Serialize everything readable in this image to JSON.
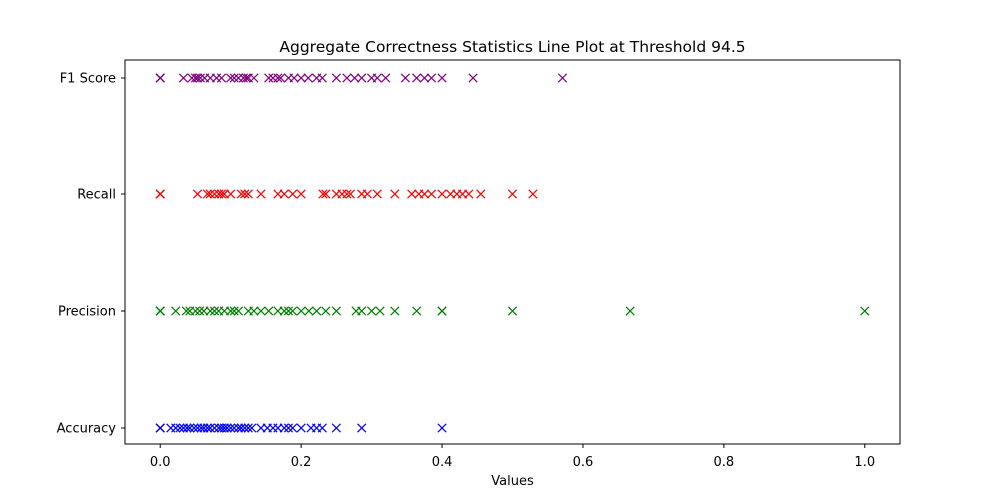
{
  "chart_data": {
    "type": "scatter",
    "title": "Aggregate Correctness Statistics Line Plot at Threshold 94.5",
    "xlabel": "Values",
    "ylabel": "",
    "xlim": [
      -0.05,
      1.05
    ],
    "x_ticks": [
      0.0,
      0.2,
      0.4,
      0.6,
      0.8,
      1.0
    ],
    "x_tick_labels": [
      "0.0",
      "0.2",
      "0.4",
      "0.6",
      "0.8",
      "1.0"
    ],
    "categories": [
      "Accuracy",
      "Precision",
      "Recall",
      "F1 Score"
    ],
    "marker": "x",
    "grid": false,
    "series": [
      {
        "category": "Accuracy",
        "color": "#0000ff",
        "values": [
          0.0,
          0.0,
          0.0,
          0.015,
          0.022,
          0.028,
          0.033,
          0.038,
          0.042,
          0.048,
          0.053,
          0.058,
          0.062,
          0.067,
          0.071,
          0.077,
          0.083,
          0.087,
          0.091,
          0.095,
          0.1,
          0.105,
          0.111,
          0.115,
          0.12,
          0.125,
          0.13,
          0.143,
          0.152,
          0.16,
          0.167,
          0.176,
          0.182,
          0.188,
          0.2,
          0.214,
          0.222,
          0.23,
          0.25,
          0.286,
          0.4
        ]
      },
      {
        "category": "Precision",
        "color": "#008000",
        "values": [
          0.0,
          0.0,
          0.0,
          0.022,
          0.037,
          0.042,
          0.05,
          0.056,
          0.062,
          0.071,
          0.077,
          0.083,
          0.091,
          0.1,
          0.105,
          0.111,
          0.125,
          0.133,
          0.143,
          0.154,
          0.167,
          0.176,
          0.182,
          0.188,
          0.2,
          0.211,
          0.222,
          0.235,
          0.25,
          0.278,
          0.286,
          0.3,
          0.312,
          0.333,
          0.364,
          0.4,
          0.4,
          0.5,
          0.667,
          1.0
        ]
      },
      {
        "category": "Recall",
        "color": "#ff0000",
        "values": [
          0.0,
          0.0,
          0.0,
          0.053,
          0.067,
          0.071,
          0.077,
          0.083,
          0.087,
          0.091,
          0.1,
          0.115,
          0.12,
          0.125,
          0.143,
          0.167,
          0.176,
          0.188,
          0.2,
          0.231,
          0.235,
          0.25,
          0.258,
          0.265,
          0.27,
          0.286,
          0.294,
          0.308,
          0.333,
          0.357,
          0.367,
          0.375,
          0.385,
          0.4,
          0.412,
          0.421,
          0.429,
          0.438,
          0.455,
          0.5,
          0.529
        ]
      },
      {
        "category": "F1 Score",
        "color": "#800080",
        "values": [
          0.0,
          0.0,
          0.0,
          0.033,
          0.045,
          0.05,
          0.053,
          0.057,
          0.063,
          0.071,
          0.08,
          0.087,
          0.1,
          0.105,
          0.111,
          0.118,
          0.122,
          0.125,
          0.133,
          0.154,
          0.16,
          0.167,
          0.171,
          0.182,
          0.19,
          0.2,
          0.21,
          0.222,
          0.23,
          0.25,
          0.265,
          0.276,
          0.286,
          0.3,
          0.308,
          0.32,
          0.348,
          0.364,
          0.375,
          0.385,
          0.4,
          0.444,
          0.571
        ]
      }
    ]
  }
}
